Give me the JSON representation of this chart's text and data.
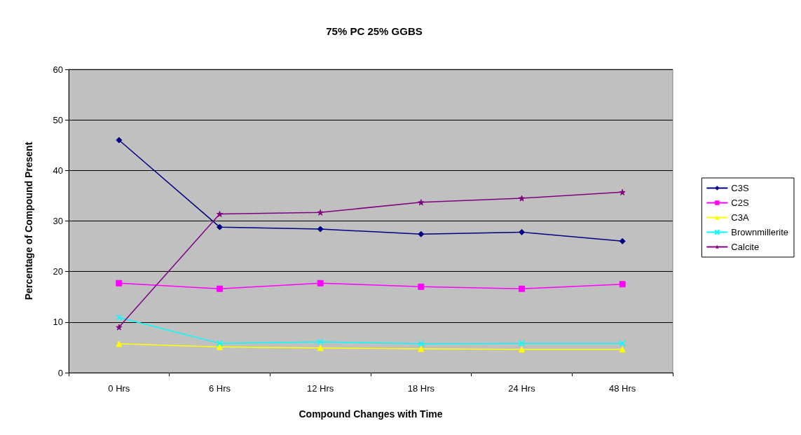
{
  "chart_data": {
    "type": "line",
    "title": "75% PC 25% GGBS",
    "xlabel": "Compound Changes with Time",
    "ylabel": "Percentage of Compound Present",
    "categories": [
      "0 Hrs",
      "6 Hrs",
      "12 Hrs",
      "18 Hrs",
      "24 Hrs",
      "48 Hrs"
    ],
    "series": [
      {
        "name": "C3S",
        "color": "#000080",
        "marker": "diamond",
        "values": [
          46.0,
          28.8,
          28.4,
          27.4,
          27.8,
          26.0
        ]
      },
      {
        "name": "C2S",
        "color": "#ff00ff",
        "marker": "square",
        "values": [
          17.7,
          16.6,
          17.7,
          17.0,
          16.6,
          17.5
        ]
      },
      {
        "name": "C3A",
        "color": "#ffff00",
        "marker": "triangle",
        "values": [
          5.7,
          5.1,
          4.9,
          4.7,
          4.6,
          4.6
        ]
      },
      {
        "name": "Brownmillerite",
        "color": "#00ffff",
        "marker": "cross",
        "values": [
          10.9,
          5.8,
          6.1,
          5.7,
          5.8,
          5.8
        ]
      },
      {
        "name": "Calcite",
        "color": "#800080",
        "marker": "star",
        "values": [
          9.0,
          31.4,
          31.7,
          33.7,
          34.5,
          35.7
        ]
      }
    ],
    "ylim": [
      0,
      60
    ],
    "yticks": [
      0,
      10,
      20,
      30,
      40,
      50,
      60
    ],
    "grid": "y",
    "legend": "right",
    "line_style": "solid"
  }
}
